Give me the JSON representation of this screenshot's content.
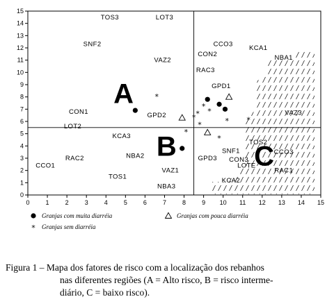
{
  "chart_data": {
    "type": "scatter",
    "xlim": [
      0,
      15
    ],
    "ylim": [
      0,
      15
    ],
    "x_ticks": [
      0,
      1,
      2,
      3,
      4,
      5,
      6,
      7,
      8,
      9,
      10,
      11,
      12,
      13,
      14,
      15
    ],
    "y_ticks": [
      0,
      1,
      2,
      3,
      4,
      5,
      6,
      7,
      8,
      9,
      10,
      11,
      12,
      13,
      14,
      15
    ],
    "divider_x": 8.5,
    "divider_y": 5.5,
    "grid": false,
    "regions": [
      {
        "label": "A",
        "x": 4.9,
        "y": 8.3
      },
      {
        "label": "B",
        "x": 7.1,
        "y": 4.0
      },
      {
        "label": "C",
        "x": 12.1,
        "y": 3.2
      }
    ],
    "factor_labels": [
      {
        "text": "TOS3",
        "x": 4.2,
        "y": 14.5
      },
      {
        "text": "LOT3",
        "x": 7.0,
        "y": 14.5
      },
      {
        "text": "SNF2",
        "x": 3.3,
        "y": 12.3
      },
      {
        "text": "VAZ2",
        "x": 6.9,
        "y": 11.0
      },
      {
        "text": "CCO3",
        "x": 10.0,
        "y": 12.3
      },
      {
        "text": "CON2",
        "x": 9.2,
        "y": 11.5
      },
      {
        "text": "KCA1",
        "x": 11.8,
        "y": 12.0
      },
      {
        "text": "NBA1",
        "x": 13.1,
        "y": 11.2
      },
      {
        "text": "RAC3",
        "x": 9.1,
        "y": 10.2
      },
      {
        "text": "GPD1",
        "x": 9.9,
        "y": 8.9
      },
      {
        "text": "CON1",
        "x": 2.6,
        "y": 6.8
      },
      {
        "text": "GPD2",
        "x": 6.6,
        "y": 6.5
      },
      {
        "text": "VAZ3",
        "x": 13.6,
        "y": 6.7
      },
      {
        "text": "LOT2",
        "x": 2.3,
        "y": 5.6
      },
      {
        "text": "KCA3",
        "x": 4.8,
        "y": 4.8
      },
      {
        "text": "TOS2",
        "x": 11.8,
        "y": 4.3
      },
      {
        "text": "CCO3",
        "x": 13.1,
        "y": 3.5
      },
      {
        "text": "SNF1",
        "x": 10.4,
        "y": 3.6
      },
      {
        "text": "NBA2",
        "x": 5.5,
        "y": 3.2
      },
      {
        "text": "GPD3",
        "x": 9.2,
        "y": 3.0
      },
      {
        "text": "CON3",
        "x": 10.8,
        "y": 2.9
      },
      {
        "text": "RAC2",
        "x": 2.4,
        "y": 3.0
      },
      {
        "text": "LOTE",
        "x": 11.2,
        "y": 2.4
      },
      {
        "text": "CCO1",
        "x": 0.9,
        "y": 2.4
      },
      {
        "text": "VAZ1",
        "x": 7.3,
        "y": 2.0
      },
      {
        "text": "RAC1",
        "x": 13.1,
        "y": 2.0
      },
      {
        "text": "TOS1",
        "x": 4.6,
        "y": 1.5
      },
      {
        "text": "KCA2",
        "x": 10.4,
        "y": 1.2
      },
      {
        "text": "NBA3",
        "x": 7.1,
        "y": 0.7
      }
    ],
    "series": [
      {
        "name": "Granjas com muita diarréia",
        "marker": "filled-circle",
        "points": [
          [
            5.5,
            6.9
          ],
          [
            9.2,
            7.8
          ],
          [
            9.8,
            7.4
          ],
          [
            10.1,
            7.0
          ],
          [
            7.9,
            3.8
          ]
        ]
      },
      {
        "name": "Granjas com pouca diarréia",
        "marker": "open-triangle",
        "points": [
          [
            10.3,
            8.0
          ],
          [
            7.9,
            6.3
          ],
          [
            9.2,
            5.1
          ]
        ]
      },
      {
        "name": "Granjas sem diarréia",
        "marker": "asterisk",
        "points": [
          [
            6.6,
            8.1
          ],
          [
            9.0,
            7.3
          ],
          [
            8.7,
            6.7
          ],
          [
            9.3,
            6.9
          ],
          [
            8.5,
            6.4
          ],
          [
            10.2,
            6.1
          ],
          [
            8.8,
            5.8
          ],
          [
            11.3,
            6.2
          ],
          [
            8.1,
            5.2
          ],
          [
            9.8,
            4.7
          ]
        ]
      }
    ],
    "hatch_region": "lower-right"
  },
  "caption": {
    "line1": "Figura 1 – Mapa dos fatores de risco com a localização dos rebanhos",
    "line2": "nas diferentes regiões (A = Alto risco, B = risco interme-",
    "line3": "diário, C = baixo risco)."
  }
}
